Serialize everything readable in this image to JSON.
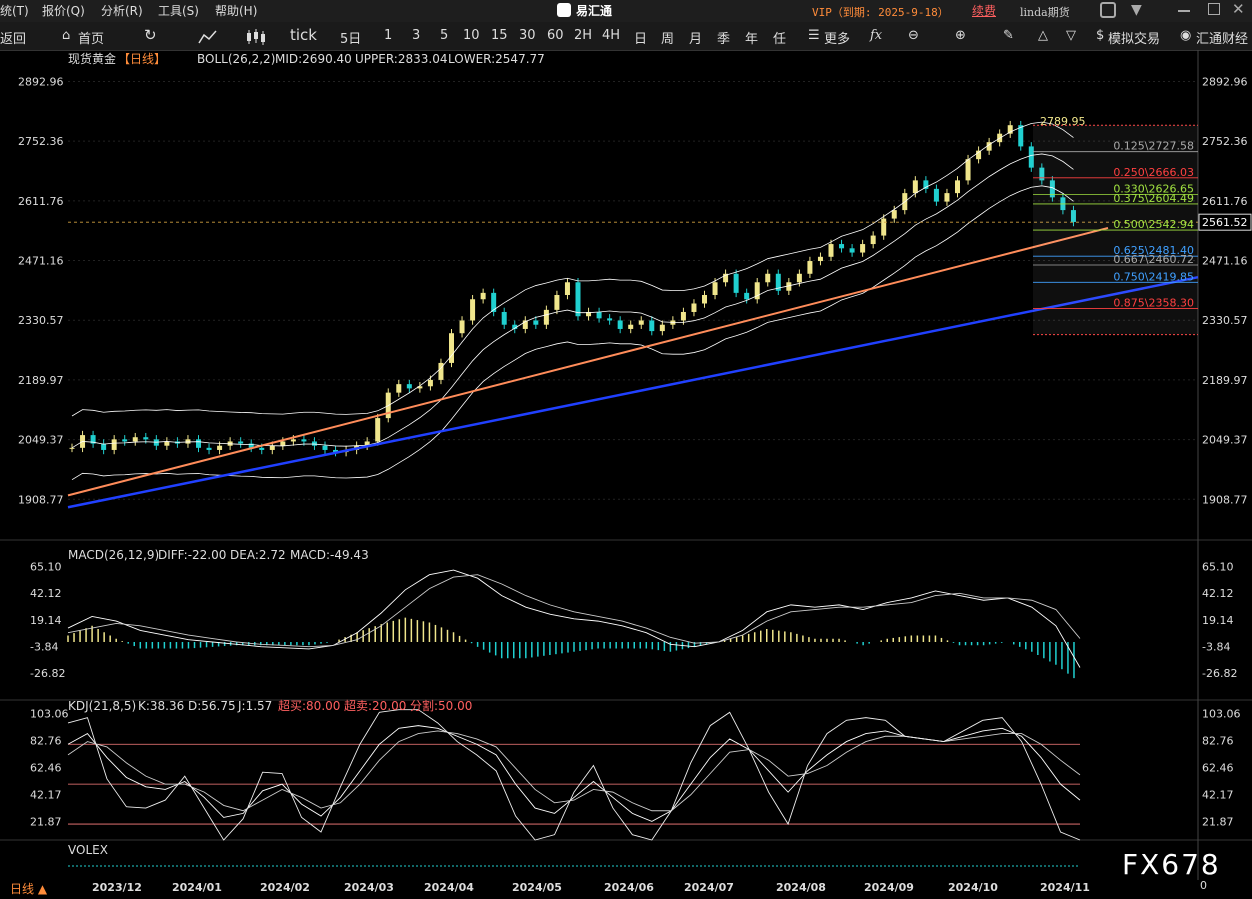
{
  "menubar": {
    "items": [
      "统(T)",
      "报价(Q)",
      "分析(R)",
      "工具(S)",
      "帮助(H)"
    ],
    "app_title": "易汇通",
    "vip": "VIP（到期: 2025-9-18）",
    "renew": "续费",
    "user": "linda期货"
  },
  "toolbar": {
    "back": "返回",
    "home": "首页",
    "periods": [
      "tick",
      "5日",
      "1",
      "3",
      "5",
      "10",
      "15",
      "30",
      "60",
      "2H",
      "4H",
      "日",
      "周",
      "月",
      "季",
      "年",
      "任"
    ],
    "more": "更多",
    "sim_trade": "模拟交易",
    "brand": "汇通财经"
  },
  "colors": {
    "up": "#f0e68c",
    "down": "#20d0d0",
    "orange_line": "#ff8c5a",
    "blue_line": "#2040ff",
    "fib_red": "#ff4040",
    "fib_green": "#a0e040",
    "fib_blue": "#40a0ff"
  },
  "bottom": {
    "period_label": "日线 ▲",
    "months": [
      "2023/12",
      "2024/01",
      "2024/02",
      "2024/03",
      "2024/04",
      "2024/05",
      "2024/06",
      "2024/07",
      "2024/08",
      "2024/09",
      "2024/10",
      "2024/11"
    ],
    "vol_value": "0"
  },
  "watermark": "FX678",
  "chart_data": [
    {
      "type": "candlestick",
      "title": "现货黄金",
      "period": "【日线】",
      "indicator": "BOLL(26,2,2)",
      "mid": "MID:2690.40",
      "upper": "UPPER:2833.04",
      "lower": "LOWER:2547.77",
      "y_ticks": [
        2892.96,
        2752.36,
        2611.76,
        2471.16,
        2330.57,
        2189.97,
        2049.37,
        1908.77
      ],
      "ylim": [
        1860,
        2920
      ],
      "current_price": "2561.52",
      "high_label": "2789.95",
      "fib_levels": [
        {
          "label": "0.125\\2727.58",
          "value": 2727.58,
          "ratio": 0.125,
          "color": "gray"
        },
        {
          "label": "0.250\\2666.03",
          "value": 2666.03,
          "ratio": 0.25,
          "color": "red"
        },
        {
          "label": "0.330\\2626.65",
          "value": 2626.65,
          "ratio": 0.33,
          "color": "green"
        },
        {
          "label": "0.375\\2604.49",
          "value": 2604.49,
          "ratio": 0.375,
          "color": "green"
        },
        {
          "label": "0.500\\2542.94",
          "value": 2542.94,
          "ratio": 0.5,
          "color": "green"
        },
        {
          "label": "0.625\\2481.40",
          "value": 2481.4,
          "ratio": 0.625,
          "color": "blue"
        },
        {
          "label": "0.667\\2460.72",
          "value": 2460.72,
          "ratio": 0.667,
          "color": "gray"
        },
        {
          "label": "0.750\\2419.85",
          "value": 2419.85,
          "ratio": 0.75,
          "color": "blue"
        },
        {
          "label": "0.875\\2358.30",
          "value": 2358.3,
          "ratio": 0.875,
          "color": "red"
        }
      ],
      "price_path": [
        2030,
        2060,
        2040,
        2025,
        2050,
        2045,
        2055,
        2050,
        2035,
        2045,
        2040,
        2050,
        2030,
        2025,
        2035,
        2045,
        2040,
        2030,
        2025,
        2035,
        2045,
        2050,
        2045,
        2035,
        2025,
        2020,
        2025,
        2035,
        2045,
        2100,
        2160,
        2180,
        2170,
        2175,
        2190,
        2230,
        2300,
        2330,
        2380,
        2395,
        2350,
        2320,
        2310,
        2330,
        2320,
        2355,
        2390,
        2420,
        2340,
        2350,
        2335,
        2330,
        2310,
        2320,
        2330,
        2305,
        2320,
        2330,
        2350,
        2370,
        2390,
        2420,
        2440,
        2395,
        2380,
        2420,
        2440,
        2400,
        2420,
        2440,
        2470,
        2480,
        2510,
        2500,
        2490,
        2510,
        2530,
        2570,
        2590,
        2630,
        2660,
        2640,
        2610,
        2630,
        2660,
        2710,
        2730,
        2750,
        2770,
        2790,
        2740,
        2690,
        2660,
        2620,
        2590,
        2562
      ]
    },
    {
      "type": "macd",
      "label": "MACD(26,12,9)",
      "diff": "DIFF:-22.00",
      "dea": "DEA:2.72",
      "macd": "MACD:-49.43",
      "y_ticks": [
        65.1,
        42.12,
        19.14,
        -3.84,
        -26.82
      ],
      "ylim": [
        -50,
        75
      ],
      "diff_path": [
        12,
        22,
        18,
        10,
        6,
        2,
        0,
        -2,
        -4,
        -5,
        -6,
        -3,
        8,
        25,
        45,
        58,
        62,
        55,
        40,
        30,
        24,
        20,
        18,
        14,
        8,
        -2,
        -4,
        0,
        10,
        26,
        32,
        30,
        32,
        28,
        34,
        38,
        44,
        40,
        36,
        38,
        30,
        14,
        -22
      ],
      "dea_path": [
        8,
        12,
        16,
        14,
        10,
        6,
        3,
        0,
        -2,
        -3,
        -4,
        -3,
        2,
        14,
        30,
        46,
        56,
        58,
        50,
        40,
        32,
        26,
        22,
        18,
        12,
        4,
        -1,
        0,
        6,
        18,
        26,
        28,
        30,
        30,
        32,
        34,
        40,
        42,
        38,
        38,
        36,
        28,
        3
      ]
    },
    {
      "type": "kdj",
      "label": "KDJ(21,8,5)",
      "k": "K:38.36",
      "d": "D:56.75",
      "j": "J:1.57",
      "overbought": "超买:80.00",
      "oversold": "超卖:20.00",
      "split": "分割:50.00",
      "y_ticks": [
        103.06,
        82.76,
        62.46,
        42.17,
        21.87
      ],
      "ylim": [
        8,
        108
      ],
      "k_path": [
        80,
        88,
        70,
        55,
        48,
        46,
        52,
        40,
        25,
        28,
        45,
        50,
        35,
        26,
        40,
        60,
        80,
        92,
        94,
        92,
        86,
        80,
        72,
        50,
        32,
        28,
        40,
        52,
        40,
        28,
        22,
        30,
        50,
        70,
        84,
        76,
        60,
        44,
        60,
        72,
        82,
        88,
        90,
        86,
        84,
        82,
        86,
        90,
        92,
        86,
        70,
        50,
        38
      ],
      "d_path": [
        72,
        82,
        78,
        66,
        56,
        50,
        50,
        44,
        34,
        30,
        38,
        46,
        40,
        32,
        36,
        50,
        68,
        82,
        88,
        90,
        88,
        84,
        78,
        62,
        46,
        36,
        38,
        46,
        44,
        36,
        30,
        30,
        42,
        58,
        74,
        76,
        68,
        56,
        58,
        64,
        74,
        82,
        86,
        86,
        84,
        82,
        84,
        86,
        88,
        88,
        80,
        68,
        57
      ]
    },
    {
      "type": "volume",
      "label": "VOLEX"
    }
  ]
}
